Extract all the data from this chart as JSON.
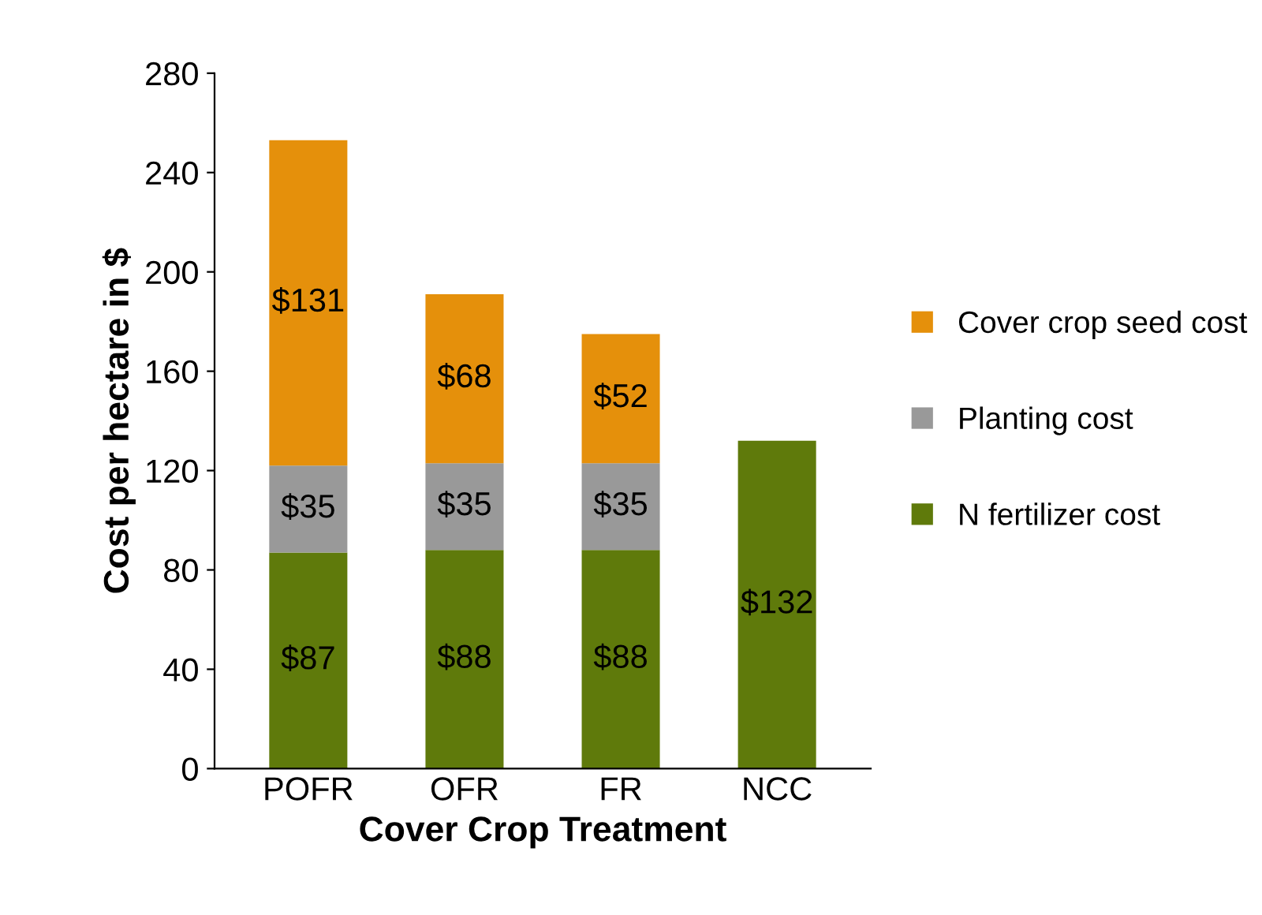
{
  "chart_data": {
    "type": "bar",
    "stacked": true,
    "xlabel": "Cover Crop Treatment",
    "ylabel": "Cost per hectare in $",
    "categories": [
      "POFR",
      "OFR",
      "FR",
      "NCC"
    ],
    "series": [
      {
        "name": "N fertilizer cost",
        "color": "#5f7a0b",
        "values": [
          87,
          88,
          88,
          132
        ],
        "value_labels": [
          "$87",
          "$88",
          "$88",
          "$132"
        ]
      },
      {
        "name": "Planting cost",
        "color": "#999999",
        "values": [
          35,
          35,
          35,
          null
        ],
        "value_labels": [
          "$35",
          "$35",
          "$35",
          null
        ]
      },
      {
        "name": "Cover crop seed cost",
        "color": "#e5900b",
        "values": [
          131,
          68,
          52,
          null
        ],
        "value_labels": [
          "$131",
          "$68",
          "$52",
          null
        ]
      }
    ],
    "ylim": [
      0,
      280
    ],
    "yticks": [
      0,
      40,
      80,
      120,
      160,
      200,
      240,
      280
    ],
    "grid": false,
    "legend": "right"
  }
}
